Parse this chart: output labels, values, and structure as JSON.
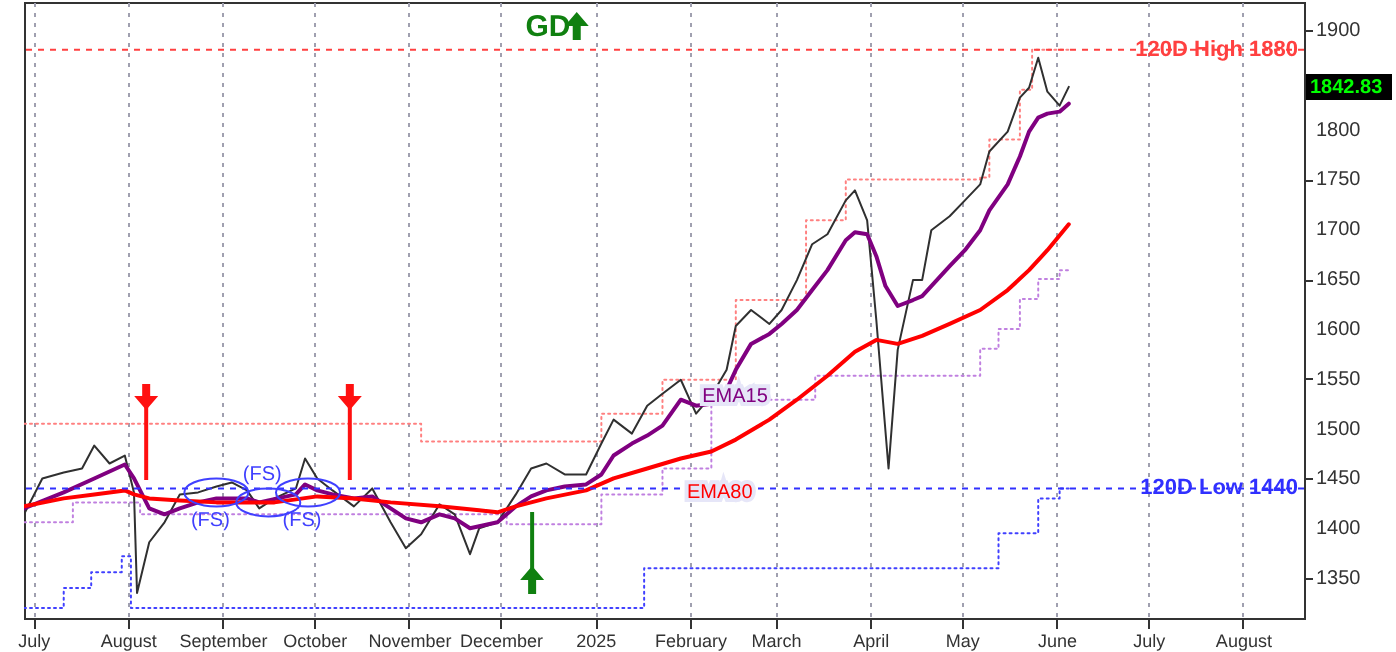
{
  "chart_data": {
    "type": "line",
    "xlim": [
      "2024-06-28",
      "2025-08-21"
    ],
    "ylim": [
      1310,
      1928
    ],
    "xticks": [
      {
        "value": "2024-07-01",
        "label": "July"
      },
      {
        "value": "2024-08-01",
        "label": "August"
      },
      {
        "value": "2024-09-01",
        "label": "September"
      },
      {
        "value": "2024-10-01",
        "label": "October"
      },
      {
        "value": "2024-11-01",
        "label": "November"
      },
      {
        "value": "2024-12-01",
        "label": "December"
      },
      {
        "value": "2025-01-01",
        "label": "2025"
      },
      {
        "value": "2025-02-01",
        "label": "February"
      },
      {
        "value": "2025-03-01",
        "label": "March"
      },
      {
        "value": "2025-04-01",
        "label": "April"
      },
      {
        "value": "2025-05-01",
        "label": "May"
      },
      {
        "value": "2025-06-01",
        "label": "June"
      },
      {
        "value": "2025-07-01",
        "label": "July"
      },
      {
        "value": "2025-08-01",
        "label": "August"
      }
    ],
    "yticks": [
      1350,
      1400,
      1450,
      1500,
      1550,
      1600,
      1650,
      1700,
      1750,
      1800,
      1900
    ],
    "grid": "x",
    "series": [
      {
        "color": "#303030",
        "x": [
          "2024-06-28",
          "2024-07-04",
          "2024-07-11",
          "2024-07-17",
          "2024-07-21",
          "2024-07-26",
          "2024-07-31",
          "2024-08-03",
          "2024-08-04",
          "2024-08-08",
          "2024-08-13",
          "2024-08-18",
          "2024-08-24",
          "2024-08-30",
          "2024-09-04",
          "2024-09-09",
          "2024-09-13",
          "2024-09-18",
          "2024-09-25",
          "2024-09-28",
          "2024-10-02",
          "2024-10-07",
          "2024-10-14",
          "2024-10-20",
          "2024-10-26",
          "2024-10-31",
          "2024-11-05",
          "2024-11-11",
          "2024-11-16",
          "2024-11-21",
          "2024-11-24",
          "2024-11-30",
          "2024-12-06",
          "2024-12-11",
          "2024-12-16",
          "2024-12-22",
          "2024-12-29",
          "2025-01-03",
          "2025-01-07",
          "2025-01-13",
          "2025-01-18",
          "2025-01-23",
          "2025-01-29",
          "2025-02-03",
          "2025-02-08",
          "2025-02-13",
          "2025-02-16",
          "2025-02-21",
          "2025-02-27",
          "2025-03-03",
          "2025-03-08",
          "2025-03-13",
          "2025-03-18",
          "2025-03-24",
          "2025-03-27",
          "2025-03-31",
          "2025-04-03",
          "2025-04-07",
          "2025-04-10",
          "2025-04-15",
          "2025-04-18",
          "2025-04-21",
          "2025-04-27",
          "2025-05-02",
          "2025-05-07",
          "2025-05-10",
          "2025-05-16",
          "2025-05-20",
          "2025-05-23",
          "2025-05-26",
          "2025-05-29",
          "2025-06-02",
          "2025-06-05"
        ],
        "values": [
          1414,
          1450,
          1456,
          1460,
          1483,
          1465,
          1473,
          1436,
          1335,
          1386,
          1406,
          1434,
          1436,
          1442,
          1446,
          1438,
          1420,
          1430,
          1440,
          1470,
          1450,
          1438,
          1422,
          1440,
          1406,
          1380,
          1394,
          1424,
          1414,
          1374,
          1400,
          1406,
          1434,
          1460,
          1465,
          1454,
          1454,
          1485,
          1509,
          1495,
          1523,
          1535,
          1549,
          1515,
          1533,
          1559,
          1603,
          1619,
          1605,
          1619,
          1649,
          1685,
          1695,
          1729,
          1739,
          1709,
          1609,
          1460,
          1579,
          1649,
          1649,
          1699,
          1713,
          1729,
          1745,
          1778,
          1798,
          1832,
          1842,
          1872,
          1838,
          1824,
          1842.83
        ]
      },
      {
        "name": "EMA15",
        "color": "#800080",
        "x": [
          "2024-06-28",
          "2024-07-11",
          "2024-07-21",
          "2024-07-31",
          "2024-08-03",
          "2024-08-08",
          "2024-08-13",
          "2024-08-18",
          "2024-08-24",
          "2024-08-30",
          "2024-09-09",
          "2024-09-13",
          "2024-09-25",
          "2024-09-28",
          "2024-10-02",
          "2024-10-07",
          "2024-10-14",
          "2024-10-20",
          "2024-10-26",
          "2024-10-31",
          "2024-11-05",
          "2024-11-11",
          "2024-11-16",
          "2024-11-21",
          "2024-11-30",
          "2024-12-06",
          "2024-12-11",
          "2024-12-16",
          "2024-12-22",
          "2024-12-29",
          "2025-01-03",
          "2025-01-07",
          "2025-01-13",
          "2025-01-18",
          "2025-01-23",
          "2025-01-29",
          "2025-02-03",
          "2025-02-08",
          "2025-02-13",
          "2025-02-16",
          "2025-02-21",
          "2025-02-27",
          "2025-03-03",
          "2025-03-08",
          "2025-03-13",
          "2025-03-18",
          "2025-03-24",
          "2025-03-27",
          "2025-03-31",
          "2025-04-03",
          "2025-04-06",
          "2025-04-10",
          "2025-04-15",
          "2025-04-18",
          "2025-04-21",
          "2025-04-27",
          "2025-05-02",
          "2025-05-07",
          "2025-05-10",
          "2025-05-16",
          "2025-05-20",
          "2025-05-23",
          "2025-05-26",
          "2025-05-29",
          "2025-06-02",
          "2025-06-05"
        ],
        "values": [
          1420,
          1436,
          1450,
          1464,
          1450,
          1420,
          1414,
          1420,
          1426,
          1430,
          1430,
          1426,
          1434,
          1444,
          1438,
          1434,
          1430,
          1432,
          1420,
          1410,
          1406,
          1414,
          1410,
          1400,
          1406,
          1422,
          1432,
          1438,
          1442,
          1444,
          1454,
          1473,
          1485,
          1493,
          1503,
          1529,
          1523,
          1525,
          1539,
          1559,
          1585,
          1595,
          1605,
          1619,
          1639,
          1659,
          1689,
          1697,
          1695,
          1673,
          1643,
          1623,
          1629,
          1633,
          1643,
          1663,
          1679,
          1699,
          1719,
          1745,
          1773,
          1798,
          1812,
          1816,
          1818,
          1826
        ]
      },
      {
        "name": "EMA80",
        "color": "#ff0000",
        "x": [
          "2024-06-28",
          "2024-07-11",
          "2024-07-21",
          "2024-07-31",
          "2024-08-03",
          "2024-08-08",
          "2024-08-18",
          "2024-08-30",
          "2024-09-18",
          "2024-10-02",
          "2024-10-14",
          "2024-10-26",
          "2024-11-11",
          "2024-11-24",
          "2024-11-30",
          "2024-12-06",
          "2024-12-16",
          "2024-12-29",
          "2025-01-07",
          "2025-01-18",
          "2025-01-29",
          "2025-02-08",
          "2025-02-16",
          "2025-02-27",
          "2025-03-08",
          "2025-03-18",
          "2025-03-27",
          "2025-04-03",
          "2025-04-10",
          "2025-04-18",
          "2025-04-27",
          "2025-05-07",
          "2025-05-16",
          "2025-05-23",
          "2025-05-29",
          "2025-06-05"
        ],
        "values": [
          1422,
          1430,
          1434,
          1438,
          1434,
          1430,
          1428,
          1426,
          1426,
          1432,
          1430,
          1426,
          1422,
          1418,
          1416,
          1422,
          1430,
          1438,
          1450,
          1460,
          1470,
          1477,
          1489,
          1509,
          1529,
          1553,
          1577,
          1589,
          1585,
          1593,
          1605,
          1619,
          1639,
          1659,
          1679,
          1705
        ]
      },
      {
        "type": "step",
        "line_style": "dotted",
        "color": "#ff8080",
        "x": [
          "2024-06-28",
          "2024-11-05",
          "2025-01-03",
          "2025-01-23",
          "2025-02-16",
          "2025-03-11",
          "2025-03-24",
          "2025-05-07",
          "2025-05-10",
          "2025-05-20",
          "2025-05-24",
          "2025-06-05"
        ],
        "values": [
          1505,
          1487,
          1515,
          1549,
          1629,
          1709,
          1750,
          1752,
          1790,
          1840,
          1880,
          1880
        ]
      },
      {
        "type": "step",
        "line_style": "dotted",
        "color": "#c080e0",
        "x": [
          "2024-06-28",
          "2024-07-14",
          "2024-08-05",
          "2024-12-03",
          "2025-01-03",
          "2025-01-23",
          "2025-02-08",
          "2025-03-14",
          "2025-05-07",
          "2025-05-13",
          "2025-05-20",
          "2025-05-26",
          "2025-06-02",
          "2025-06-05"
        ],
        "values": [
          1406,
          1426,
          1414,
          1404,
          1434,
          1460,
          1529,
          1553,
          1580,
          1600,
          1630,
          1650,
          1659,
          1659
        ]
      },
      {
        "type": "step",
        "line_style": "dotted",
        "color": "#4040ff",
        "x": [
          "2024-06-28",
          "2024-07-11",
          "2024-07-20",
          "2024-07-30",
          "2024-08-02",
          "2025-01-17",
          "2025-05-13",
          "2025-05-26",
          "2025-06-02",
          "2025-06-05"
        ],
        "values": [
          1320,
          1340,
          1356,
          1372,
          1320,
          1360,
          1395,
          1430,
          1440,
          1440
        ]
      }
    ],
    "ref_lines": [
      {
        "axis": "y",
        "value": 1880,
        "label": "120D High 1880",
        "color": "#ff4040",
        "line_style": "dashed"
      },
      {
        "axis": "y",
        "value": 1440,
        "label": "120D Low 1440",
        "color": "#3030ff",
        "line_style": "dashed"
      }
    ],
    "annotations": [
      "GD",
      {
        "text": "(FS)",
        "x": "2024-08-28",
        "y": 1440
      },
      {
        "text": "(FS)",
        "x": "2024-09-14",
        "y": 1426
      },
      {
        "text": "(FS)",
        "x": "2024-09-27",
        "y": 1440
      },
      "1842.83"
    ]
  }
}
